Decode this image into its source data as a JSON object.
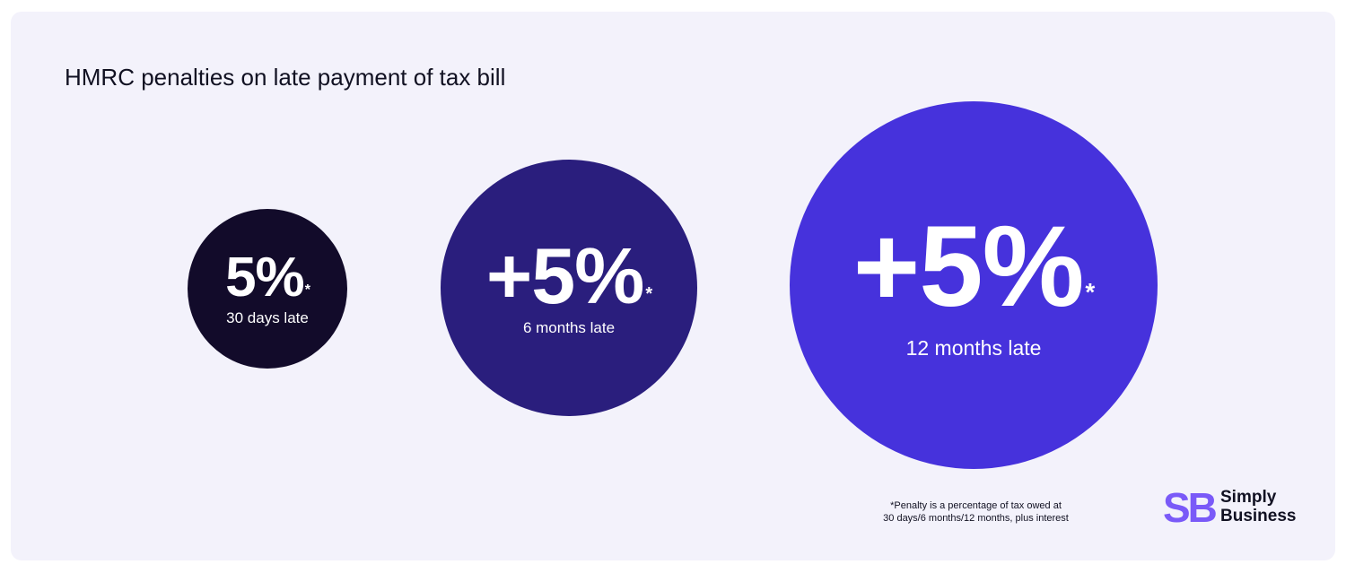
{
  "title": "HMRC penalties on late payment of tax bill",
  "penalties": [
    {
      "value": "5%",
      "asterisk": "*",
      "label": "30 days late",
      "color": "#120b2a"
    },
    {
      "value": "+5%",
      "asterisk": "*",
      "label": "6 months late",
      "color": "#2a1e7d"
    },
    {
      "value": "+5%",
      "asterisk": "*",
      "label": "12 months late",
      "color": "#4632dc"
    }
  ],
  "footnote": {
    "line1": "*Penalty is a percentage of tax owed at",
    "line2": "30 days/6 months/12 months, plus interest"
  },
  "logo": {
    "mark": "SB",
    "line1": "Simply",
    "line2": "Business",
    "mark_color": "#7a5af8"
  },
  "colors": {
    "background": "#f3f2fb",
    "text": "#111122"
  }
}
